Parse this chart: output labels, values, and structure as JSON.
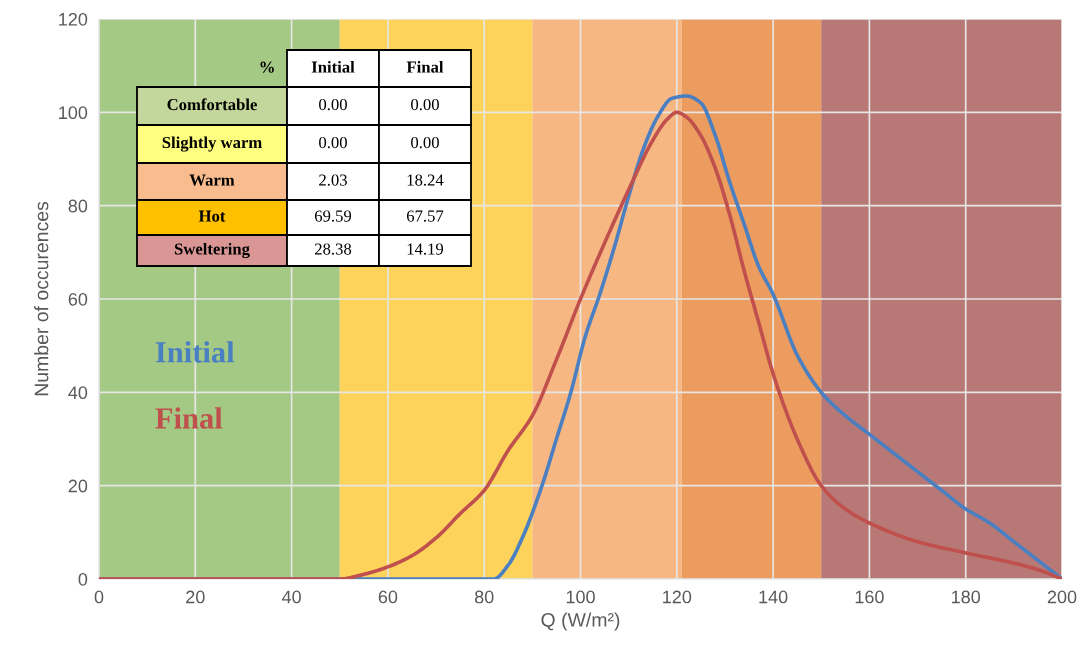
{
  "chart_data": {
    "type": "line",
    "xlabel": "Q (W/m²)",
    "ylabel": "Number of occurences",
    "xlim": [
      0,
      200
    ],
    "xticks": [
      0,
      20,
      40,
      60,
      80,
      100,
      120,
      140,
      160,
      180,
      200
    ],
    "ylim": [
      0,
      120
    ],
    "yticks": [
      0,
      20,
      40,
      60,
      80,
      100,
      120
    ],
    "grid": true,
    "legend": "left",
    "marker": "none",
    "line_style": "solid",
    "series": [
      {
        "name": "Initial",
        "color": "#4a7fc1",
        "x": [
          0,
          40,
          82,
          85,
          88,
          92,
          95,
          98,
          101,
          104,
          107,
          110,
          113,
          116,
          119,
          122,
          125,
          128,
          131,
          134,
          137,
          140,
          145,
          150,
          155,
          160,
          165,
          170,
          175,
          180,
          185,
          190,
          195,
          200
        ],
        "values": [
          0,
          0,
          0,
          3,
          9,
          20,
          30,
          40,
          52,
          61,
          71,
          82,
          92,
          99,
          103,
          103.5,
          102,
          95,
          85,
          76,
          67,
          61,
          48,
          40,
          35,
          31,
          27,
          23,
          19,
          15,
          12,
          8,
          4,
          0
        ]
      },
      {
        "name": "Final",
        "color": "#c0504d",
        "x": [
          0,
          40,
          50,
          55,
          60,
          65,
          70,
          75,
          80,
          85,
          90,
          95,
          100,
          105,
          110,
          115,
          118,
          120,
          122,
          125,
          128,
          131,
          134,
          137,
          140,
          145,
          150,
          155,
          160,
          170,
          180,
          190,
          195,
          200
        ],
        "values": [
          0,
          0,
          0,
          1,
          2.6,
          5,
          8.8,
          14,
          19,
          27.6,
          35,
          47,
          60,
          72,
          83.4,
          94,
          98.5,
          100,
          99,
          95,
          88,
          78,
          66,
          55,
          44,
          30,
          20,
          15,
          12,
          8,
          5.6,
          3.4,
          2,
          0
        ]
      }
    ],
    "bands": [
      {
        "axis": "x",
        "from": 0,
        "to": 50,
        "color": "#a3c985"
      },
      {
        "axis": "x",
        "from": 50,
        "to": 90,
        "color": "#fdd35c"
      },
      {
        "axis": "x",
        "from": 90,
        "to": 121,
        "color": "#f7b783"
      },
      {
        "axis": "x",
        "from": 121,
        "to": 150,
        "color": "#eb9c5e"
      },
      {
        "axis": "x",
        "from": 150,
        "to": 200,
        "color": "#b87976"
      }
    ],
    "annotations": [
      "%",
      "Initial",
      "Final",
      "Comfortable",
      "0.00",
      "0.00",
      "Slightly warm",
      "0.00",
      "0.00",
      "Warm",
      "2.03",
      "18.24",
      "Hot",
      "69.59",
      "67.57",
      "Sweltering",
      "28.38",
      "14.19"
    ]
  }
}
